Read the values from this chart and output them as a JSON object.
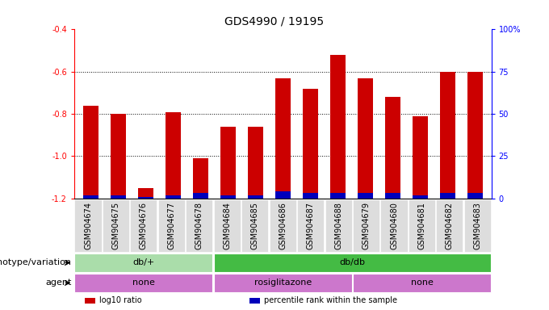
{
  "title": "GDS4990 / 19195",
  "samples": [
    "GSM904674",
    "GSM904675",
    "GSM904676",
    "GSM904677",
    "GSM904678",
    "GSM904684",
    "GSM904685",
    "GSM904686",
    "GSM904687",
    "GSM904688",
    "GSM904679",
    "GSM904680",
    "GSM904681",
    "GSM904682",
    "GSM904683"
  ],
  "log10_ratio": [
    -0.76,
    -0.8,
    -1.15,
    -0.79,
    -1.01,
    -0.86,
    -0.86,
    -0.63,
    -0.68,
    -0.52,
    -0.63,
    -0.72,
    -0.81,
    -0.6,
    -0.6
  ],
  "percentile_rank": [
    2,
    2,
    1,
    2,
    3,
    2,
    2,
    4,
    3,
    3,
    3,
    3,
    2,
    3,
    3
  ],
  "bar_color": "#cc0000",
  "blue_color": "#0000bb",
  "ylim_left": [
    -1.2,
    -0.4
  ],
  "ylim_right": [
    0,
    100
  ],
  "yticks_left": [
    -1.2,
    -1.0,
    -0.8,
    -0.6,
    -0.4
  ],
  "yticks_right": [
    0,
    25,
    50,
    75,
    100
  ],
  "grid_values": [
    -0.6,
    -0.8,
    -1.0
  ],
  "geno_ranges": [
    {
      "start": 0,
      "end": 5,
      "label": "db/+",
      "color": "#aaddaa"
    },
    {
      "start": 5,
      "end": 15,
      "label": "db/db",
      "color": "#44bb44"
    }
  ],
  "agent_ranges": [
    {
      "start": 0,
      "end": 5,
      "label": "none",
      "color": "#cc77cc"
    },
    {
      "start": 5,
      "end": 10,
      "label": "rosiglitazone",
      "color": "#cc77cc"
    },
    {
      "start": 10,
      "end": 15,
      "label": "none",
      "color": "#cc77cc"
    }
  ],
  "legend_items": [
    {
      "color": "#cc0000",
      "label": "log10 ratio"
    },
    {
      "color": "#0000bb",
      "label": "percentile rank within the sample"
    }
  ],
  "bar_width": 0.55,
  "background_color": "#ffffff",
  "genotype_label": "genotype/variation",
  "agent_label": "agent",
  "title_fontsize": 10,
  "tick_fontsize": 7,
  "label_fontsize": 8,
  "annot_fontsize": 8
}
